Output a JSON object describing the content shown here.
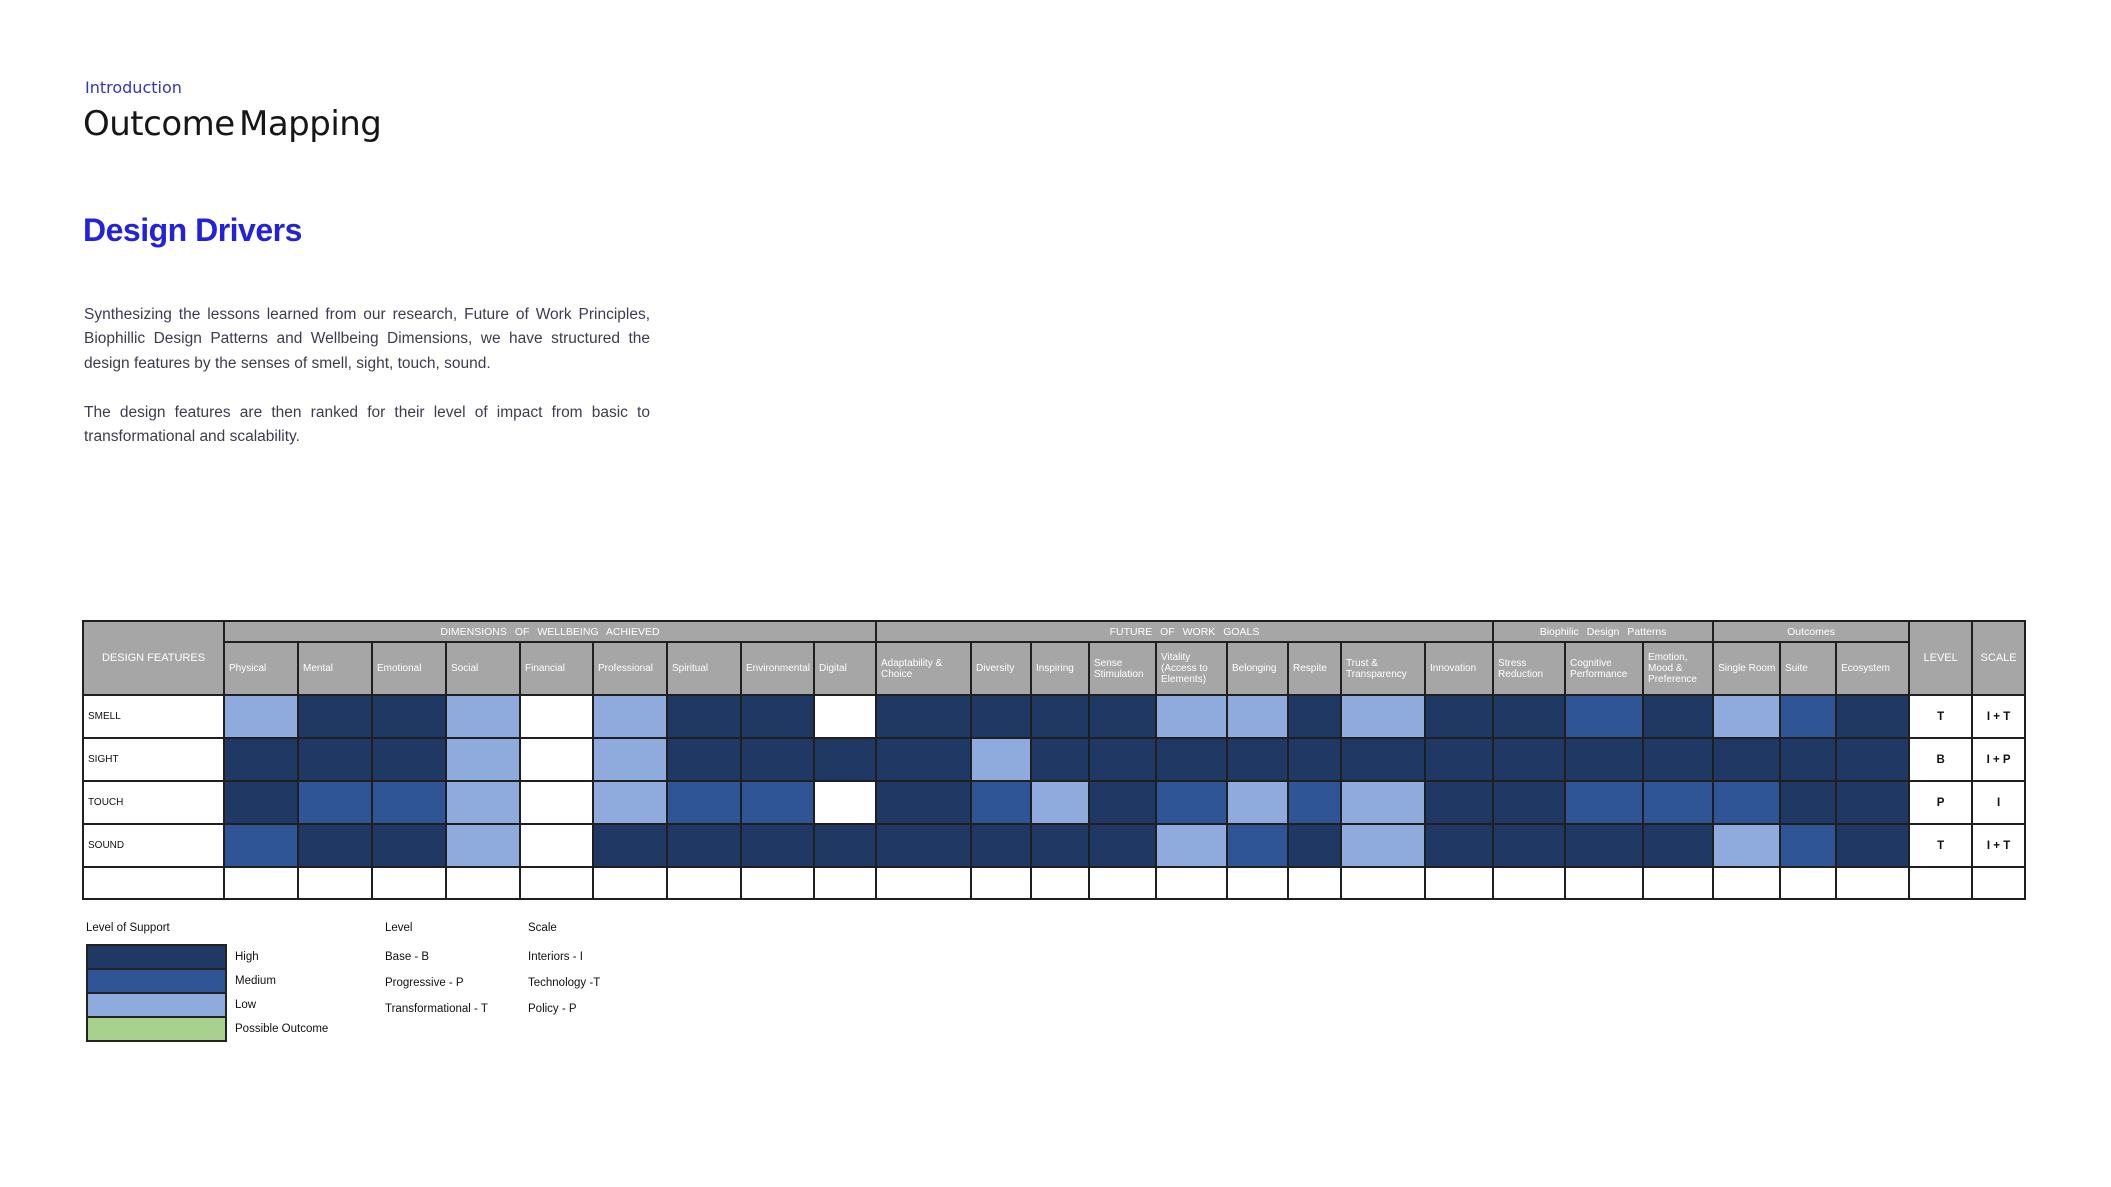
{
  "page": {
    "eyebrow": "Introduction",
    "title": "Outcome Mapping",
    "section_heading": "Design Drivers",
    "paragraph1": "Synthesizing the lessons learned from our research, Future of Work Principles, Biophillic Design Patterns and Wellbeing Dimensions, we have structured the design features by the senses of smell, sight, touch, sound.",
    "paragraph2": "The design features are then ranked for their level of impact from basic to transformational and scalability."
  },
  "colors": {
    "high": "#1f3864",
    "medium": "#2f5597",
    "low": "#8faadc",
    "possible_outcome": "#a9d18e",
    "header_bg": "#a6a6a6",
    "header_text": "#ffffff",
    "eyebrow_blue": "#3333cc",
    "accent_blue": "#2222dd"
  },
  "matrix": {
    "corner_label": "DESIGN FEATURES",
    "level_header": "LEVEL",
    "scale_header": "SCALE",
    "groups": [
      {
        "label": "DIMENSIONS OF WELLBEING ACHIEVED",
        "columns": [
          "Physical",
          "Mental",
          "Emotional",
          "Social",
          "Financial",
          "Professional",
          "Spiritual",
          "Environmental",
          "Digital"
        ]
      },
      {
        "label": "FUTURE OF WORK GOALS",
        "columns": [
          "Adaptability & Choice",
          "Diversity",
          "Inspiring",
          "Sense Stimulation",
          "Vitality (Access to Elements)",
          "Belonging",
          "Respite",
          "Trust & Transparency",
          "Innovation"
        ]
      },
      {
        "label": "Biophilic Design Patterns",
        "columns": [
          "Stress Reduction",
          "Cognitive Performance",
          "Emotion, Mood & Preference"
        ]
      },
      {
        "label": "Outcomes",
        "columns": [
          "Single Room",
          "Suite",
          "Ecosystem"
        ]
      }
    ],
    "cell_code_meaning": {
      "H": "High",
      "M": "Medium",
      "L": "Low",
      "W": "None"
    },
    "rows": [
      {
        "feature": "SMELL",
        "cells": [
          "L",
          "H",
          "H",
          "L",
          "W",
          "L",
          "H",
          "H",
          "W",
          "H",
          "H",
          "H",
          "H",
          "L",
          "L",
          "H",
          "L",
          "H",
          "H",
          "M",
          "H",
          "L",
          "M",
          "H"
        ],
        "level": "T",
        "scale": "I + T"
      },
      {
        "feature": "SIGHT",
        "cells": [
          "H",
          "H",
          "H",
          "L",
          "W",
          "L",
          "H",
          "H",
          "H",
          "H",
          "L",
          "H",
          "H",
          "H",
          "H",
          "H",
          "H",
          "H",
          "H",
          "H",
          "H",
          "H",
          "H",
          "H"
        ],
        "level": "B",
        "scale": "I + P"
      },
      {
        "feature": "TOUCH",
        "cells": [
          "H",
          "M",
          "M",
          "L",
          "W",
          "L",
          "M",
          "M",
          "W",
          "H",
          "M",
          "L",
          "H",
          "M",
          "L",
          "M",
          "L",
          "H",
          "H",
          "M",
          "M",
          "M",
          "H",
          "H"
        ],
        "level": "P",
        "scale": "I"
      },
      {
        "feature": "SOUND",
        "cells": [
          "M",
          "H",
          "H",
          "L",
          "W",
          "H",
          "H",
          "H",
          "H",
          "H",
          "H",
          "H",
          "H",
          "L",
          "M",
          "H",
          "L",
          "H",
          "H",
          "H",
          "H",
          "L",
          "M",
          "H"
        ],
        "level": "T",
        "scale": "I + T"
      }
    ],
    "has_trailing_empty_row": true
  },
  "legend": {
    "support_title": "Level of Support",
    "support_items": [
      {
        "label": "High",
        "color_key": "high"
      },
      {
        "label": "Medium",
        "color_key": "medium"
      },
      {
        "label": "Low",
        "color_key": "low"
      },
      {
        "label": "Possible Outcome",
        "color_key": "possible_outcome"
      }
    ],
    "level_title": "Level",
    "level_items": [
      "Base - B",
      "Progressive - P",
      "Transformational - T"
    ],
    "scale_title": "Scale",
    "scale_items": [
      "Interiors - I",
      "Technology -T",
      "Policy - P"
    ]
  }
}
